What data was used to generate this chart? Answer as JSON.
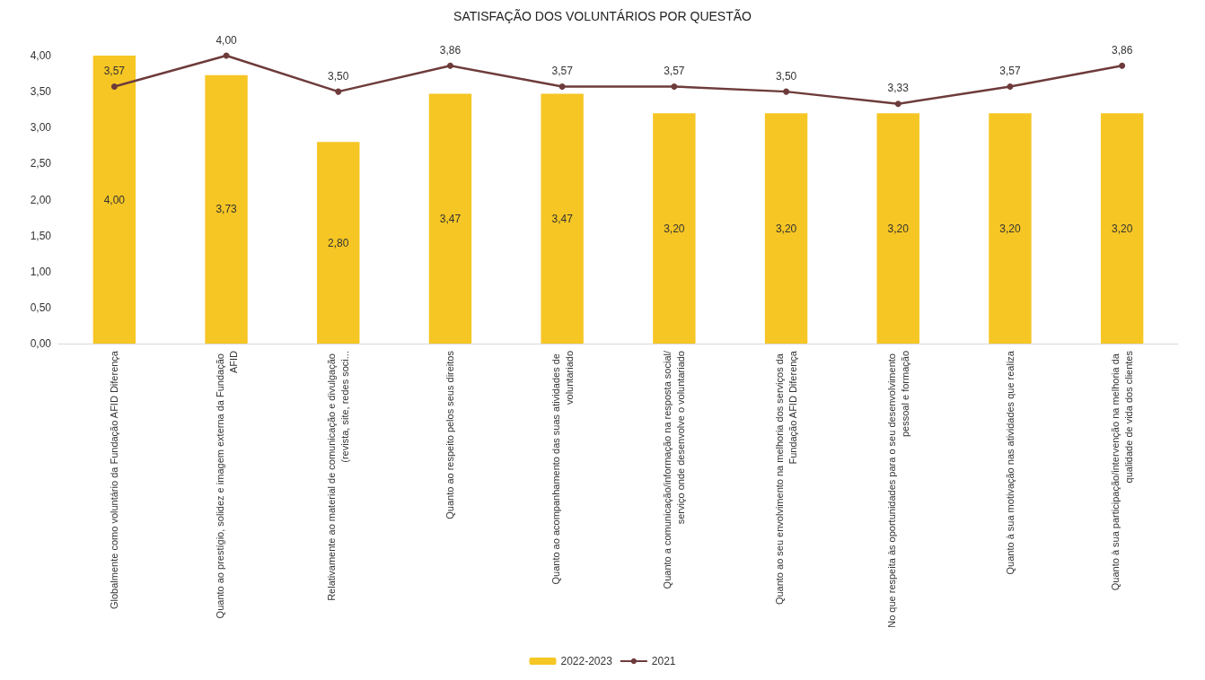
{
  "chart_data": {
    "type": "bar",
    "title": "SATISFAÇÃO DOS VOLUNTÁRIOS POR QUESTÃO",
    "categories": [
      "Globalmente como voluntário da Fundação AFID Diferença",
      "Quanto ao prestígio, solidez e imagem externa da Fundação AFID",
      "Relativamente ao material de comunicação e divulgação (revista, site, redes soci...",
      "Quanto ao respeito pelos seus direitos",
      "Quanto ao acompanhamento das suas atividades de voluntariado",
      "Quanto a comunicação/informação na resposta social/serviço onde desenvolve o voluntariado",
      "Quanto ao seu envolvimento na melhoria dos serviços da Fundação AFID Diferença",
      "No que respeita às oportunidades para o seu desenvolvimento pessoal e formação",
      "Quanto à sua motivação nas atividades que realiza",
      "Quanto à sua participação/intervenção na melhoria da qualidade de vida dos clientes"
    ],
    "series": [
      {
        "name": "2022-2023",
        "color": "#f6c624",
        "values": [
          4.0,
          3.73,
          2.8,
          3.47,
          3.47,
          3.2,
          3.2,
          3.2,
          3.2,
          3.2
        ],
        "value_labels": [
          "4,00",
          "3,73",
          "2,80",
          "3,47",
          "3,47",
          "3,20",
          "3,20",
          "3,20",
          "3,20",
          "3,20"
        ]
      },
      {
        "name": "2021",
        "type": "line",
        "color": "#6e3b3b",
        "values": [
          3.57,
          4.0,
          3.5,
          3.86,
          3.57,
          3.57,
          3.5,
          3.33,
          3.57,
          3.86
        ],
        "value_labels": [
          "3,57",
          "4,00",
          "3,50",
          "3,86",
          "3,57",
          "3,57",
          "3,50",
          "3,33",
          "3,57",
          "3,86"
        ]
      }
    ],
    "ylim": [
      0,
      4
    ],
    "yticks": [
      {
        "value": 0,
        "label": "0,00"
      },
      {
        "value": 0.5,
        "label": "0,50"
      },
      {
        "value": 1,
        "label": "1,00"
      },
      {
        "value": 1.5,
        "label": "1,50"
      },
      {
        "value": 2,
        "label": "2,00"
      },
      {
        "value": 2.5,
        "label": "2,50"
      },
      {
        "value": 3,
        "label": "3,00"
      },
      {
        "value": 3.5,
        "label": "3,50"
      },
      {
        "value": 4,
        "label": "4,00"
      }
    ],
    "grid": false,
    "legend": "bottom",
    "marker": "circle"
  }
}
